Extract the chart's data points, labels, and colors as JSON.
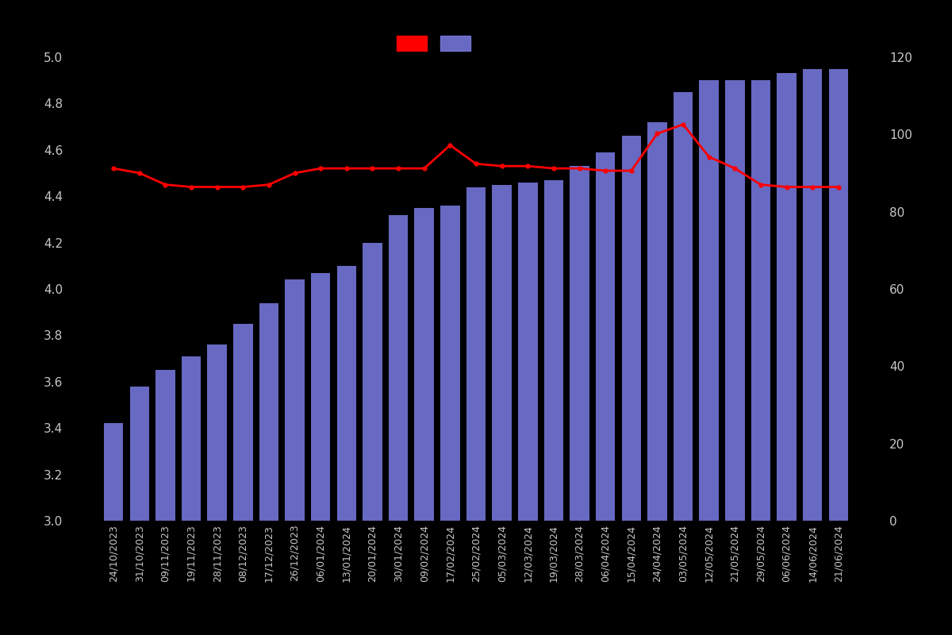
{
  "dates": [
    "24/10/2023",
    "31/10/2023",
    "09/11/2023",
    "19/11/2023",
    "28/11/2023",
    "08/12/2023",
    "17/12/2023",
    "26/12/2023",
    "06/01/2024",
    "13/01/2024",
    "20/01/2024",
    "30/01/2024",
    "09/02/2024",
    "17/02/2024",
    "25/02/2024",
    "05/03/2024",
    "12/03/2024",
    "19/03/2024",
    "28/03/2024",
    "06/04/2024",
    "15/04/2024",
    "24/04/2024",
    "03/05/2024",
    "12/05/2024",
    "21/05/2024",
    "29/05/2024",
    "06/06/2024",
    "14/06/2024",
    "21/06/2024"
  ],
  "bar_values": [
    3.42,
    3.58,
    3.65,
    3.71,
    3.76,
    3.85,
    3.94,
    4.04,
    4.07,
    4.1,
    4.2,
    4.32,
    4.35,
    4.36,
    4.44,
    4.45,
    4.46,
    4.47,
    4.53,
    4.59,
    4.66,
    4.72,
    4.85,
    4.9,
    4.9,
    4.9,
    4.93,
    4.95,
    4.95
  ],
  "line_values": [
    4.52,
    4.5,
    4.45,
    4.44,
    4.44,
    4.44,
    4.45,
    4.5,
    4.52,
    4.52,
    4.52,
    4.52,
    4.52,
    4.62,
    4.54,
    4.53,
    4.53,
    4.52,
    4.52,
    4.51,
    4.51,
    4.67,
    4.71,
    4.57,
    4.52,
    4.45,
    4.44,
    4.44,
    4.44
  ],
  "bar_color": "#7b7ce5",
  "line_color": "#ff0000",
  "marker_color": "#ff0000",
  "background_color": "#000000",
  "text_color": "#c8c8c8",
  "ylim_left": [
    3.0,
    5.0
  ],
  "ylim_right": [
    0,
    120
  ],
  "yticks_left": [
    3.0,
    3.2,
    3.4,
    3.6,
    3.8,
    4.0,
    4.2,
    4.4,
    4.6,
    4.8,
    5.0
  ],
  "yticks_right": [
    0,
    20,
    40,
    60,
    80,
    100,
    120
  ],
  "bar_bottom": 3.0
}
